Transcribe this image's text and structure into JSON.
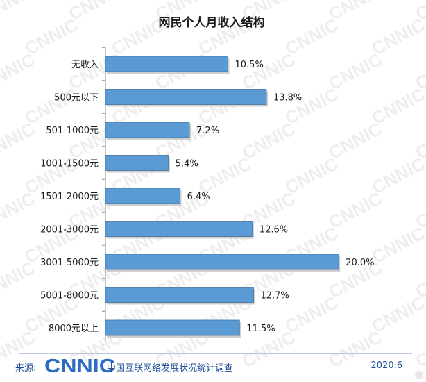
{
  "chart_data": {
    "type": "bar",
    "orientation": "horizontal",
    "title": "网民个人月收入结构",
    "categories": [
      "无收入",
      "500元以下",
      "501-1000元",
      "1001-1500元",
      "1501-2000元",
      "2001-3000元",
      "3001-5000元",
      "5001-8000元",
      "8000元以上"
    ],
    "values": [
      10.5,
      13.8,
      7.2,
      5.4,
      6.4,
      12.6,
      20.0,
      12.7,
      11.5
    ],
    "value_labels": [
      "10.5%",
      "13.8%",
      "7.2%",
      "5.4%",
      "6.4%",
      "12.6%",
      "20.0%",
      "12.7%",
      "11.5%"
    ],
    "xlim": [
      0,
      21
    ],
    "grid": false,
    "bar_color": "#5b9bd5",
    "bar_border_color": "#41719c"
  },
  "watermark": {
    "text": "CNNIC",
    "color": "#eeeeee"
  },
  "footer": {
    "source_label": "来源:",
    "logo_text": "CNNIC",
    "org_name": "中国互联网络发展状况统计调查",
    "date": "2020.6",
    "text_color": "#1f4e9a",
    "logo_color": "#2a6cc2"
  }
}
